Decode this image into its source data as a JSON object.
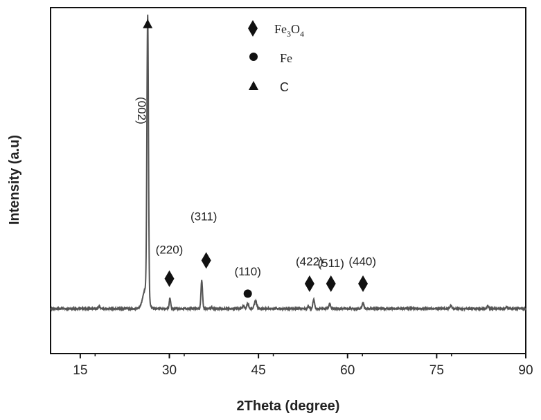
{
  "chart_data": {
    "type": "line",
    "xlabel": "2Theta (degree)",
    "ylabel": "Intensity (a.u)",
    "xlim": [
      10,
      90
    ],
    "ylim": [
      0,
      100
    ],
    "x_ticks": [
      15,
      30,
      45,
      60,
      75,
      90
    ],
    "x_tick_labels": [
      "15",
      "30",
      "45",
      "60",
      "75",
      "90"
    ],
    "grid": false,
    "legend_position": "top-center",
    "legend": [
      {
        "marker": "diamond",
        "text": "Fe3O4",
        "parts": {
          "a": "Fe",
          "b": "3",
          "c": "O",
          "d": "4"
        }
      },
      {
        "marker": "circle",
        "text": "Fe"
      },
      {
        "marker": "triangle",
        "text": "C"
      }
    ],
    "series": [
      {
        "color": "#555555",
        "baseline": 13.5,
        "noise": 0.35,
        "peaks": [
          {
            "x": 18.2,
            "h": 0.8,
            "w": 0.12
          },
          {
            "x": 26.0,
            "h": 6,
            "w": 0.45
          },
          {
            "x": 26.35,
            "h": 84,
            "w": 0.13
          },
          {
            "x": 30.1,
            "h": 3.2,
            "w": 0.12
          },
          {
            "x": 35.45,
            "h": 8.5,
            "w": 0.13
          },
          {
            "x": 37.1,
            "h": 0.5,
            "w": 0.12
          },
          {
            "x": 42.5,
            "h": 0.9,
            "w": 0.15
          },
          {
            "x": 43.2,
            "h": 1.6,
            "w": 0.15
          },
          {
            "x": 44.5,
            "h": 2.3,
            "w": 0.2
          },
          {
            "x": 53.4,
            "h": 0.7,
            "w": 0.12
          },
          {
            "x": 54.3,
            "h": 2.8,
            "w": 0.14
          },
          {
            "x": 57.0,
            "h": 1.5,
            "w": 0.14
          },
          {
            "x": 62.6,
            "h": 1.9,
            "w": 0.14
          },
          {
            "x": 77.4,
            "h": 1.0,
            "w": 0.14
          },
          {
            "x": 83.6,
            "h": 0.8,
            "w": 0.14
          },
          {
            "x": 86.8,
            "h": 0.5,
            "w": 0.14
          }
        ]
      }
    ],
    "annotations": [
      {
        "text": "(002)",
        "x": 24.0,
        "y": 73,
        "rotate": true
      },
      {
        "text": "(220)",
        "x": 30.0,
        "y": 30
      },
      {
        "text": "(311)",
        "x": 35.8,
        "y": 40
      },
      {
        "text": "(110)",
        "x": 43.2,
        "y": 23.5
      },
      {
        "text": "(422)",
        "x": 53.6,
        "y": 26.5
      },
      {
        "text": "(511)",
        "x": 57.2,
        "y": 26
      },
      {
        "text": "(440)",
        "x": 62.5,
        "y": 26.5
      }
    ],
    "markers": [
      {
        "shape": "triangle",
        "x": 26.35,
        "y": 99
      },
      {
        "shape": "diamond",
        "x": 30.0,
        "y": 22.5
      },
      {
        "shape": "diamond",
        "x": 36.2,
        "y": 28
      },
      {
        "shape": "circle",
        "x": 43.2,
        "y": 18
      },
      {
        "shape": "diamond",
        "x": 53.6,
        "y": 21
      },
      {
        "shape": "diamond",
        "x": 57.2,
        "y": 21
      },
      {
        "shape": "diamond",
        "x": 62.6,
        "y": 21
      }
    ]
  }
}
